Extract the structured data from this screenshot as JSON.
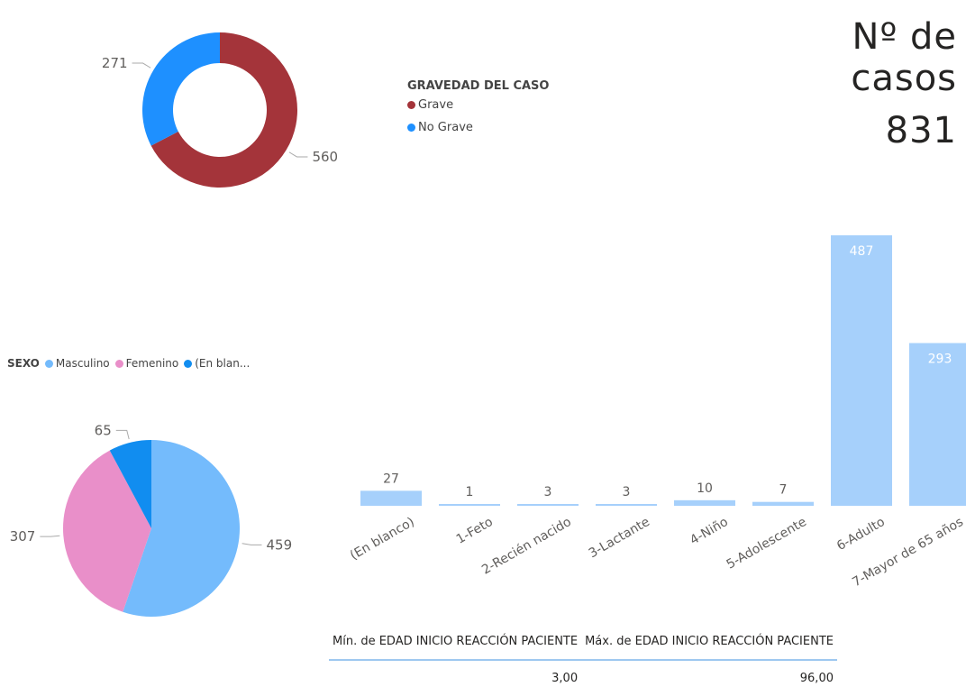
{
  "donut": {
    "legend_title": "GRAVEDAD DEL CASO",
    "chart_data": {
      "type": "pie",
      "variant": "donut",
      "legend_title": "GRAVEDAD DEL CASO",
      "categories": [
        "Grave",
        "No Grave"
      ],
      "values": [
        560,
        271
      ],
      "colors": [
        "#a4343a",
        "#1e90ff"
      ],
      "legend_position": "right"
    }
  },
  "kpi": {
    "title_line1": "Nº de",
    "title_line2": "casos",
    "value": "831"
  },
  "pie": {
    "legend_title": "SEXO",
    "legend_labels": [
      "Masculino",
      "Femenino",
      "(En blan..."
    ],
    "chart_data": {
      "type": "pie",
      "legend_title": "SEXO",
      "categories": [
        "Masculino",
        "Femenino",
        "(En blanco)"
      ],
      "values": [
        459,
        307,
        65
      ],
      "colors": [
        "#74bbfc",
        "#e98fc9",
        "#118df0"
      ],
      "legend_position": "top"
    }
  },
  "bars": {
    "chart_data": {
      "type": "bar",
      "categories": [
        "(En blanco)",
        "1-Feto",
        "2-Recién nacido",
        "3-Lactante",
        "4-Niño",
        "5-Adolescente",
        "6-Adulto",
        "7-Mayor de 65 años"
      ],
      "values": [
        27,
        1,
        3,
        3,
        10,
        7,
        487,
        293
      ],
      "color": "#a6d0fb",
      "ylim": [
        0,
        487
      ],
      "grid": false,
      "xlabel": "",
      "ylabel": ""
    }
  },
  "minmax": {
    "headers": [
      "Mín. de EDAD INICIO REACCIÓN PACIENTE",
      "Máx. de EDAD INICIO REACCIÓN PACIENTE"
    ],
    "values": [
      "3,00",
      "96,00"
    ]
  }
}
